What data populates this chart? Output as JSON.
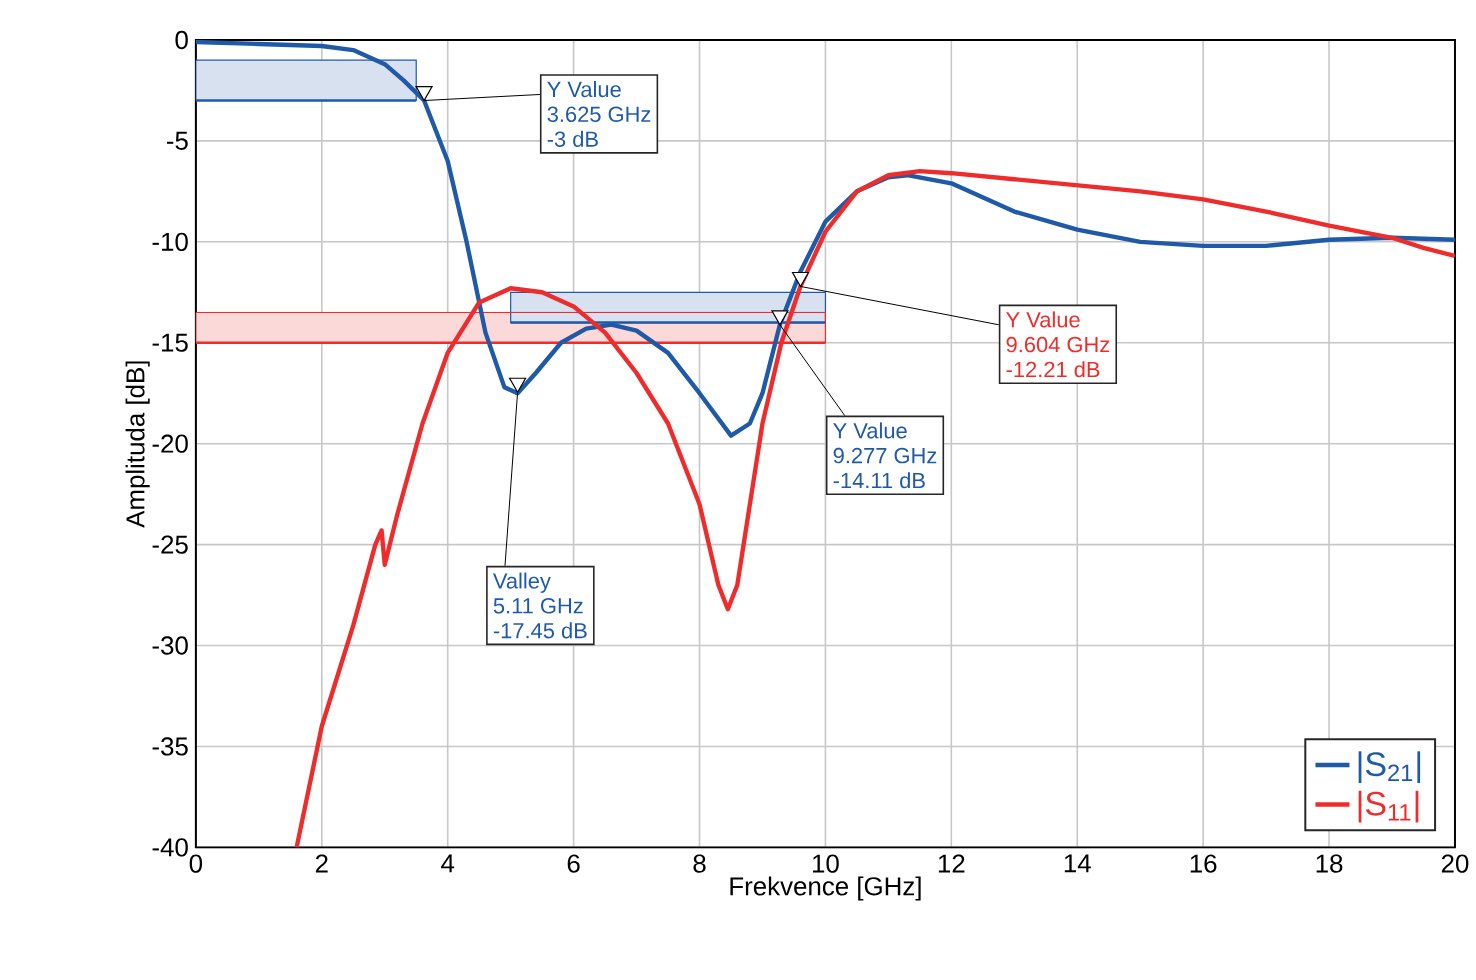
{
  "chart_data": {
    "type": "line",
    "xlabel": "Frekvence [GHz]",
    "ylabel": "Amplituda [dB]",
    "xlim": [
      0,
      20
    ],
    "ylim": [
      -40,
      0
    ],
    "xticks": [
      0,
      2,
      4,
      6,
      8,
      10,
      12,
      14,
      16,
      18,
      20
    ],
    "yticks": [
      0,
      -5,
      -10,
      -15,
      -20,
      -25,
      -30,
      -35,
      -40
    ],
    "grid": true,
    "legend": "bottom right",
    "series": [
      {
        "color": "#1f5aa8",
        "x": [
          0,
          3.5
        ],
        "values": [
          -3,
          -3
        ],
        "lower": [
          -3,
          -3
        ],
        "upper": [
          -1,
          -1
        ]
      },
      {
        "color": "#1f5aa8",
        "x": [
          5,
          10
        ],
        "values": [
          -14,
          -14
        ],
        "lower": [
          -14,
          -14
        ],
        "upper": [
          -12.5,
          -12.5
        ]
      },
      {
        "color": "#ee2c2c",
        "x": [
          0,
          10
        ],
        "values": [
          -15,
          -15
        ],
        "lower": [
          -15,
          -15
        ],
        "upper": [
          -13.5,
          -13.5
        ]
      },
      {
        "name": "|S$_{21}$|",
        "color": "#1f5aa8",
        "x": [
          0,
          1,
          2,
          2.5,
          3,
          3.3,
          3.625,
          4,
          4.3,
          4.6,
          4.9,
          5.11,
          5.4,
          5.8,
          6.2,
          6.6,
          7,
          7.5,
          8,
          8.5,
          8.8,
          9,
          9.277,
          9.6,
          10,
          10.5,
          11,
          11.3,
          12,
          13,
          14,
          15,
          16,
          17,
          18,
          19,
          20
        ],
        "values": [
          -0.1,
          -0.2,
          -0.3,
          -0.5,
          -1.2,
          -2,
          -3,
          -6,
          -10,
          -14.5,
          -17.2,
          -17.5,
          -16.5,
          -15,
          -14.3,
          -14.1,
          -14.4,
          -15.5,
          -17.5,
          -19.6,
          -19,
          -17.5,
          -14.1,
          -11.5,
          -9,
          -7.5,
          -6.8,
          -6.7,
          -7.1,
          -8.5,
          -9.4,
          -10,
          -10.2,
          -10.2,
          -9.9,
          -9.8,
          -9.9
        ]
      },
      {
        "name": "|S$_{11}$|",
        "color": "#ee2c2c",
        "x": [
          1.6,
          2,
          2.5,
          2.85,
          2.95,
          3,
          3.2,
          3.6,
          4,
          4.5,
          5,
          5.5,
          6,
          6.5,
          7,
          7.5,
          8,
          8.3,
          8.45,
          8.6,
          8.8,
          9,
          9.3,
          9.604,
          10,
          10.5,
          11,
          11.5,
          12,
          13,
          14,
          15,
          16,
          17,
          18,
          19,
          19.5,
          20
        ],
        "values": [
          -40,
          -34,
          -29,
          -25,
          -24.3,
          -26,
          -23.5,
          -19,
          -15.5,
          -13,
          -12.3,
          -12.5,
          -13.2,
          -14.5,
          -16.5,
          -19,
          -23,
          -27,
          -28.2,
          -27,
          -23,
          -19,
          -15,
          -12.2,
          -9.5,
          -7.5,
          -6.7,
          -6.5,
          -6.6,
          -6.9,
          -7.2,
          -7.5,
          -7.9,
          -8.5,
          -9.2,
          -9.8,
          -10.3,
          -10.7
        ]
      }
    ],
    "annotations": [
      {
        "text": "Y Value",
        "x": 3.625,
        "y": -3
      },
      "3.625 GHz",
      "-3 dB",
      {
        "text": "Valley",
        "x": 5.11,
        "y": -17.45
      },
      "5.11 GHz",
      "-17.45 dB",
      {
        "text": "Y Value",
        "x": 9.604,
        "y": -12.21
      },
      "9.604 GHz",
      "-12.21 dB",
      {
        "text": "Y Value",
        "x": 9.277,
        "y": -14.11
      },
      "9.277 GHz",
      "-14.11 dB"
    ]
  }
}
